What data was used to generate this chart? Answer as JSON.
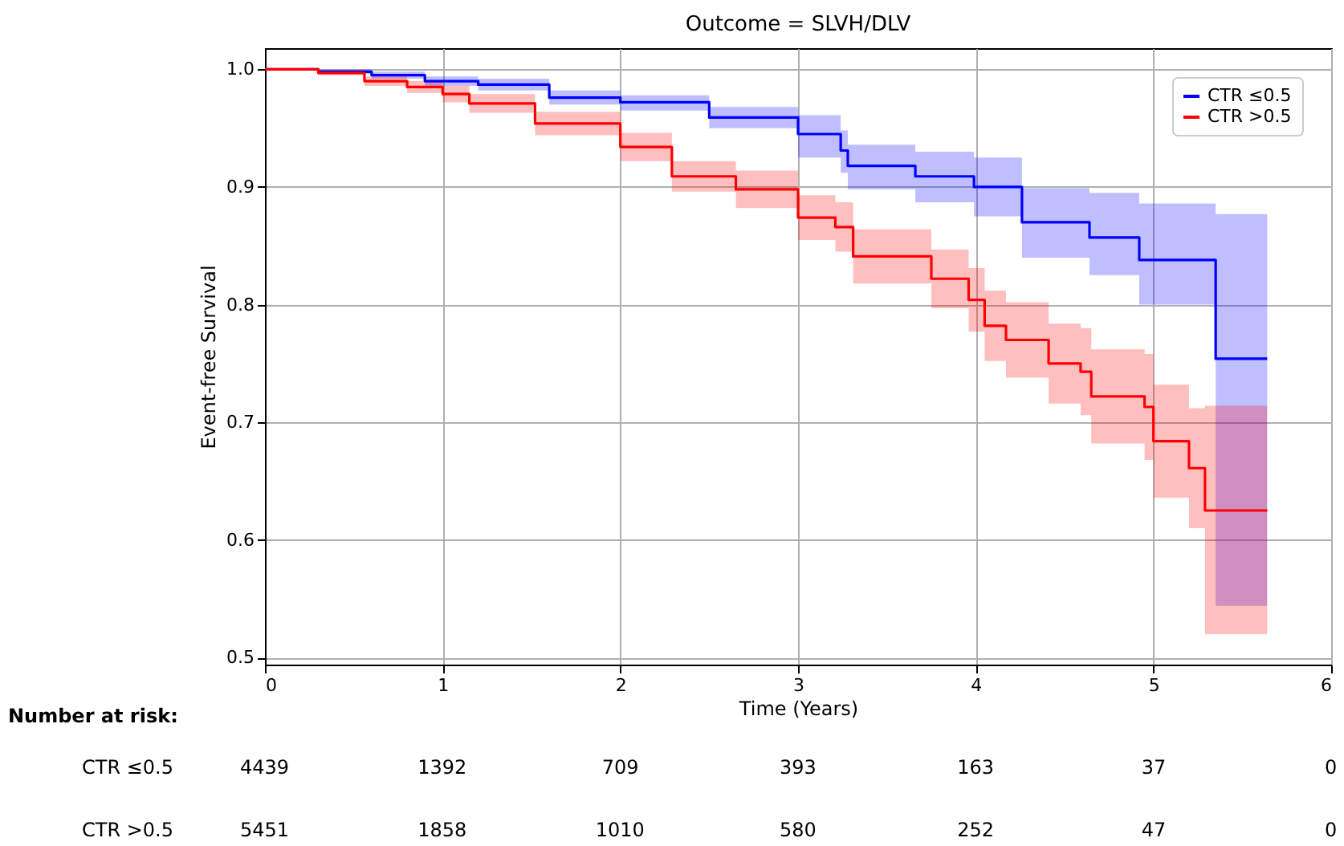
{
  "chart_data": {
    "type": "step",
    "title": "Outcome = SLVH/DLV",
    "xlabel": "Time (Years)",
    "ylabel": "Event-free Survival",
    "xlim": [
      0,
      6
    ],
    "xticks": [
      0,
      1,
      2,
      3,
      4,
      5,
      6
    ],
    "ylim": [
      0.494,
      1.018
    ],
    "yticks": [
      0.5,
      0.6,
      0.7,
      0.8,
      0.9,
      {
        "value": 1.0,
        "label": "1.0"
      }
    ],
    "grid": true,
    "legend": "top right",
    "line_style": "solid",
    "marker": "none",
    "series": [
      {
        "name": "CTR ≤0.5",
        "color": "#0000ff",
        "x": [
          0,
          0.3,
          0.6,
          0.9,
          1.2,
          1.6,
          2.0,
          2.5,
          3.0,
          3.24,
          3.28,
          3.66,
          3.99,
          4.26,
          4.64,
          4.92,
          5.35,
          5.64
        ],
        "values": [
          1.0,
          0.998,
          0.995,
          0.99,
          0.987,
          0.976,
          0.972,
          0.959,
          0.945,
          0.931,
          0.918,
          0.909,
          0.9,
          0.87,
          0.857,
          0.838,
          0.754,
          0.754
        ],
        "lower": [
          1.0,
          0.996,
          0.992,
          0.986,
          0.982,
          0.97,
          0.965,
          0.95,
          0.925,
          0.912,
          0.898,
          0.887,
          0.875,
          0.84,
          0.825,
          0.8,
          0.544,
          0.544
        ],
        "upper": [
          1.0,
          1.0,
          0.998,
          0.994,
          0.992,
          0.982,
          0.978,
          0.968,
          0.961,
          0.948,
          0.936,
          0.93,
          0.925,
          0.899,
          0.895,
          0.886,
          0.877,
          0.877
        ]
      },
      {
        "name": "CTR >0.5",
        "color": "#ff0000",
        "x": [
          0,
          0.3,
          0.56,
          0.8,
          1.0,
          1.15,
          1.52,
          2.0,
          2.29,
          2.65,
          3.0,
          3.21,
          3.31,
          3.75,
          3.96,
          4.05,
          4.17,
          4.41,
          4.59,
          4.65,
          4.95,
          5.0,
          5.2,
          5.29,
          5.64
        ],
        "values": [
          1.0,
          0.997,
          0.99,
          0.985,
          0.979,
          0.971,
          0.954,
          0.934,
          0.909,
          0.898,
          0.874,
          0.866,
          0.841,
          0.822,
          0.804,
          0.782,
          0.77,
          0.75,
          0.743,
          0.722,
          0.713,
          0.684,
          0.661,
          0.625,
          0.625
        ],
        "lower": [
          1.0,
          0.995,
          0.986,
          0.98,
          0.972,
          0.963,
          0.944,
          0.922,
          0.896,
          0.882,
          0.855,
          0.845,
          0.818,
          0.797,
          0.777,
          0.752,
          0.738,
          0.716,
          0.706,
          0.682,
          0.668,
          0.636,
          0.61,
          0.52,
          0.52
        ],
        "upper": [
          1.0,
          0.999,
          0.994,
          0.99,
          0.986,
          0.979,
          0.964,
          0.946,
          0.922,
          0.914,
          0.893,
          0.887,
          0.864,
          0.847,
          0.831,
          0.812,
          0.802,
          0.784,
          0.78,
          0.762,
          0.758,
          0.732,
          0.712,
          0.714,
          0.714
        ]
      }
    ],
    "annotations": [
      "Number at risk:",
      "CTR ≤0.5",
      "4439",
      "1392",
      "709",
      "393",
      "163",
      "37",
      "0",
      "CTR >0.5",
      "5451",
      "1858",
      "1010",
      "580",
      "252",
      "47",
      "0"
    ]
  }
}
